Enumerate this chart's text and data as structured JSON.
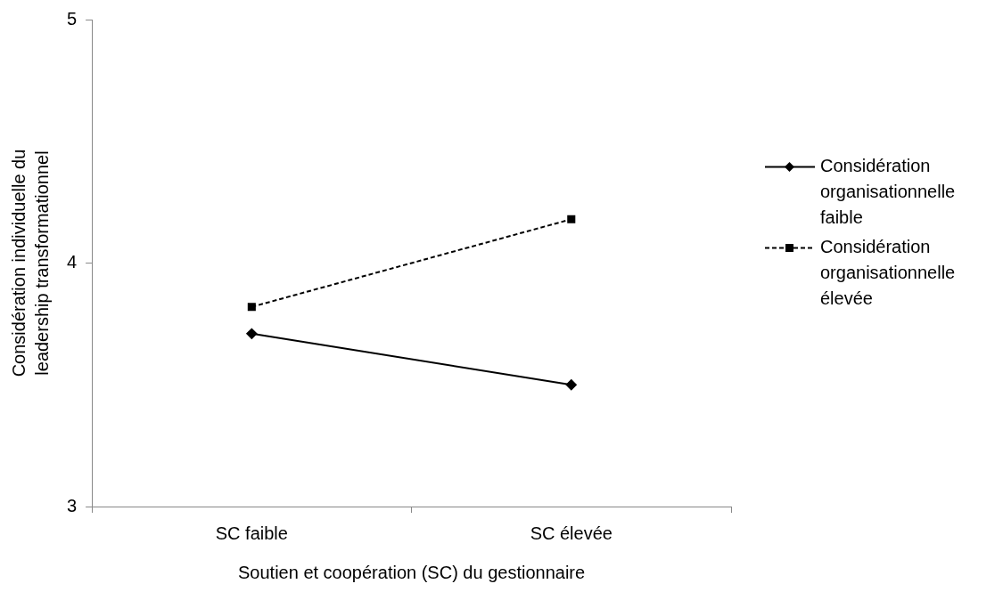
{
  "chart_data": {
    "type": "line",
    "xlabel": "Soutien et coopération (SC) du gestionnaire",
    "ylabel": "Considération individuelle du leadership transformationnel",
    "categories": [
      "SC faible",
      "SC élevée"
    ],
    "series": [
      {
        "name": "Considération organisationnelle faible",
        "color": "#000000",
        "values": [
          3.71,
          3.5
        ],
        "marker": "diamond",
        "line_style": "solid"
      },
      {
        "name": "Considération organisationnelle élevée",
        "color": "#000000",
        "values": [
          3.82,
          4.18
        ],
        "marker": "square",
        "line_style": "dashed"
      }
    ],
    "ylim": [
      3,
      5
    ],
    "yticks": [
      3,
      4,
      5
    ],
    "grid": false,
    "legend": "right"
  }
}
